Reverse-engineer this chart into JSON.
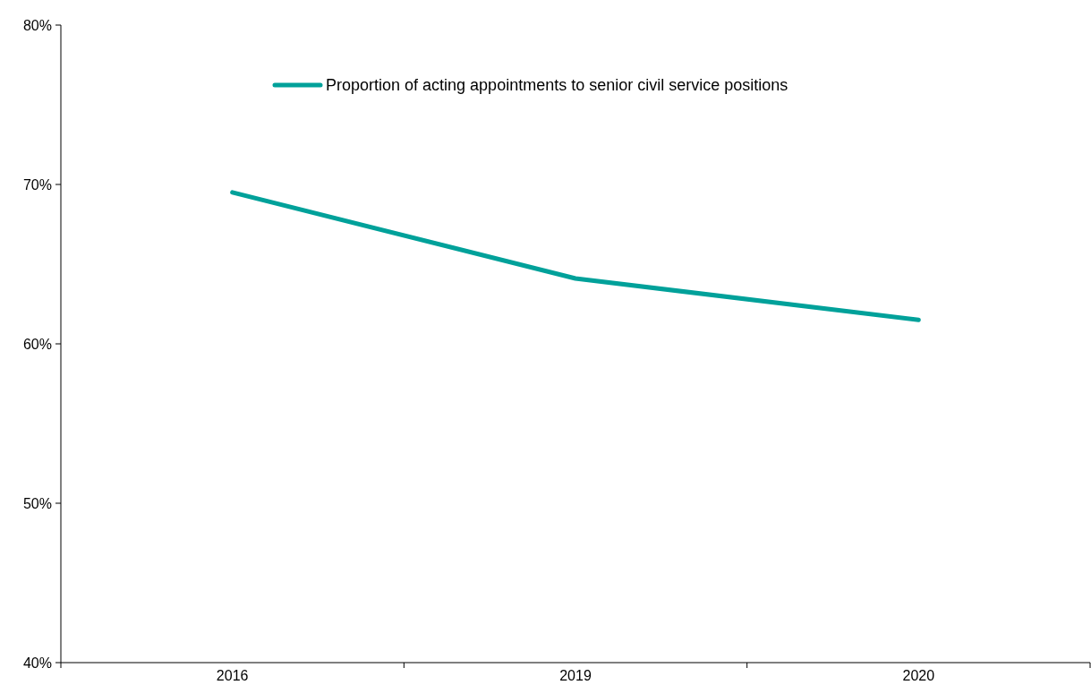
{
  "chart_data": {
    "type": "line",
    "categories": [
      "2016",
      "2019",
      "2020"
    ],
    "series": [
      {
        "name": "Proportion of acting appointments to senior civil service positions",
        "color": "#00a19a",
        "values": [
          69.5,
          64.1,
          61.5
        ]
      }
    ],
    "ylim": [
      40,
      80
    ],
    "yticks": [
      {
        "value": 40,
        "label": "40%"
      },
      {
        "value": 50,
        "label": "50%"
      },
      {
        "value": 60,
        "label": "60%"
      },
      {
        "value": 70,
        "label": "70%"
      },
      {
        "value": 80,
        "label": "80%"
      }
    ],
    "legend": "top",
    "grid": false,
    "marker": "none",
    "line_style": "solid"
  }
}
